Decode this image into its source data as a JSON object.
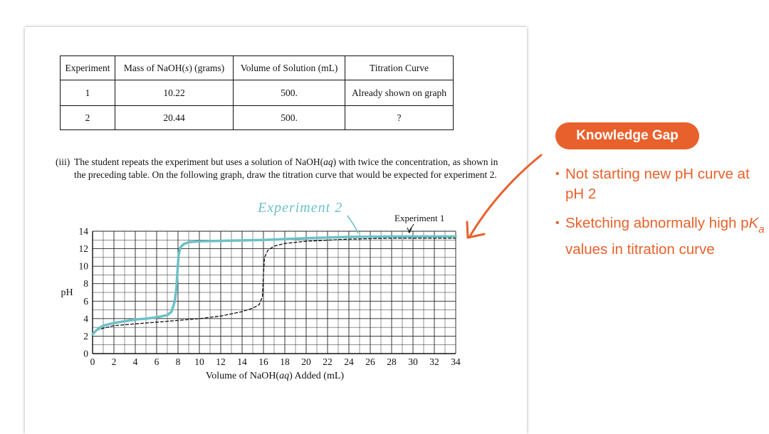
{
  "table": {
    "headers": [
      "Experiment",
      "Mass of NaOH(s) (grams)",
      "Volume of Solution (mL)",
      "Titration Curve"
    ],
    "rows": [
      [
        "1",
        "10.22",
        "500.",
        "Already shown on graph"
      ],
      [
        "2",
        "20.44",
        "500.",
        "?"
      ]
    ]
  },
  "question": {
    "number": "(iii)",
    "text_before": "The student repeats the experiment but uses a solution of NaOH(",
    "text_italic": "aq",
    "text_after": ") with twice the concentration, as shown in the preceding table. On the following graph, draw the titration curve that would be expected for experiment 2."
  },
  "sidebar": {
    "badge": "Knowledge Gap",
    "bullet_1": "Not starting new pH curve at pH 2",
    "bullet_2_before": "Sketching abnormally high p",
    "bullet_2_k": "K",
    "bullet_2_sub": "a",
    "bullet_2_after": " values in titration curve",
    "bullet_marker": "•",
    "accent_color": "#e8612c"
  },
  "chart_data": {
    "type": "line",
    "xlabel": "Volume of NaOH(aq) Added (mL)",
    "ylabel": "pH",
    "xlim": [
      0,
      34
    ],
    "ylim": [
      0,
      14
    ],
    "xticks": [
      0,
      2,
      4,
      6,
      8,
      10,
      12,
      14,
      16,
      18,
      20,
      22,
      24,
      26,
      28,
      30,
      32,
      34
    ],
    "yticks": [
      0,
      2,
      4,
      6,
      8,
      10,
      12,
      14
    ],
    "grid": true,
    "series": [
      {
        "name": "Experiment 1",
        "style": "dashed",
        "color": "#111111",
        "x": [
          0,
          0.5,
          1,
          2,
          4,
          6,
          8,
          10,
          12,
          14,
          15,
          15.6,
          15.9,
          16.0,
          16.1,
          16.4,
          17,
          18,
          20,
          24,
          28,
          34
        ],
        "y": [
          2.3,
          2.7,
          2.9,
          3.2,
          3.4,
          3.6,
          3.8,
          4.0,
          4.3,
          4.8,
          5.2,
          5.6,
          6.5,
          9.0,
          11.0,
          11.8,
          12.3,
          12.6,
          12.85,
          13.1,
          13.2,
          13.2
        ]
      },
      {
        "name": "Experiment 2",
        "style": "solid",
        "color": "#6cc1c7",
        "x": [
          0,
          0.3,
          0.6,
          1,
          2,
          3,
          4,
          5,
          6,
          7,
          7.4,
          7.7,
          7.85,
          7.95,
          8.05,
          8.2,
          8.5,
          9,
          10,
          12,
          16,
          20,
          24,
          28,
          34
        ],
        "y": [
          2.2,
          2.6,
          2.9,
          3.2,
          3.5,
          3.7,
          3.9,
          4.0,
          4.15,
          4.4,
          4.8,
          6.0,
          7.5,
          9.5,
          11.2,
          12.1,
          12.5,
          12.75,
          12.85,
          12.9,
          13.0,
          13.2,
          13.35,
          13.4,
          13.4
        ]
      }
    ],
    "annotations": [
      {
        "text": "Experiment 1",
        "style": "print"
      },
      {
        "text": "Experiment 2",
        "style": "handwritten",
        "lettering": "Experiment 2"
      }
    ]
  }
}
